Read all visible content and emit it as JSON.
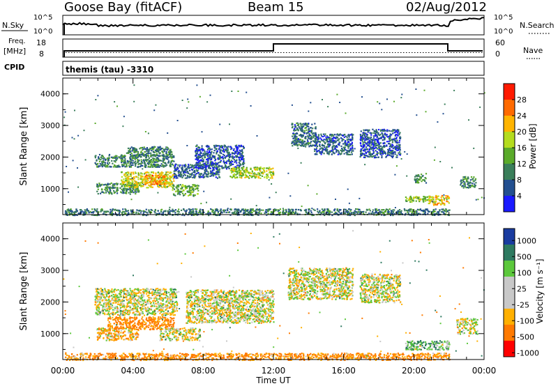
{
  "header": {
    "radar": "Goose Bay (fitACF)",
    "beam": "Beam 15",
    "date": "02/Aug/2012"
  },
  "top_panels": {
    "nsky_label": "N.Sky",
    "nsearch_label": "N.Search",
    "freq_label": "Freq.",
    "freq_unit": "[MHz]",
    "nave_label": "Nave",
    "cpid_label": "CPID",
    "cpid_value": "themis (tau) -3310",
    "noise_ticks_left": [
      "10^5",
      "10^0"
    ],
    "noise_ticks_right": [
      "10^5",
      "10^0"
    ],
    "freq_ticks": [
      "18",
      "8"
    ],
    "nave_ticks": [
      "60",
      "0"
    ]
  },
  "colors": {
    "power": [
      "#1a1aff",
      "#234f8f",
      "#3a7e5a",
      "#5aaa2a",
      "#b4dc1e",
      "#ffb400",
      "#ff6a00",
      "#ff1a00"
    ],
    "velocity": [
      "#ff0000",
      "#ff7a00",
      "#ffb000",
      "#c8c8c8",
      "#c8c8c8",
      "#5cc83c",
      "#2e7a60",
      "#1a3ca0"
    ]
  },
  "chart_data": [
    {
      "type": "heatmap",
      "panel": "power",
      "ylabel": "Slant Range [km]",
      "ylim": [
        180,
        4500
      ],
      "yticks": [
        "1000",
        "2000",
        "3000",
        "4000"
      ],
      "colorbar_label": "Power [dB]",
      "colorbar_ticks": [
        "4",
        "8",
        "12",
        "16",
        "20",
        "24",
        "28"
      ],
      "colorbar_range": [
        0,
        30
      ],
      "regions": [
        {
          "t0": 1.9,
          "t1": 4.3,
          "r0": 850,
          "r1": 1200,
          "v": 11
        },
        {
          "t0": 3.3,
          "t1": 6.3,
          "r0": 1050,
          "r1": 1550,
          "v": 19
        },
        {
          "t0": 4.6,
          "t1": 5.9,
          "r0": 1150,
          "r1": 1450,
          "v": 24
        },
        {
          "t0": 1.8,
          "t1": 6.3,
          "r0": 1700,
          "r1": 2100,
          "v": 10
        },
        {
          "t0": 3.6,
          "t1": 6.2,
          "r0": 2050,
          "r1": 2350,
          "v": 9
        },
        {
          "t0": 6.2,
          "t1": 7.7,
          "r0": 800,
          "r1": 1150,
          "v": 13
        },
        {
          "t0": 6.3,
          "t1": 8.9,
          "r0": 1350,
          "r1": 1800,
          "v": 7
        },
        {
          "t0": 7.5,
          "t1": 10.3,
          "r0": 1650,
          "r1": 2400,
          "v": 6
        },
        {
          "t0": 9.5,
          "t1": 12.0,
          "r0": 1350,
          "r1": 1700,
          "v": 17
        },
        {
          "t0": 13.0,
          "t1": 14.4,
          "r0": 2350,
          "r1": 3100,
          "v": 8
        },
        {
          "t0": 14.3,
          "t1": 16.5,
          "r0": 2100,
          "r1": 2750,
          "v": 7
        },
        {
          "t0": 16.9,
          "t1": 19.2,
          "r0": 2000,
          "r1": 2900,
          "v": 6
        },
        {
          "t0": 19.5,
          "t1": 21.0,
          "r0": 600,
          "r1": 780,
          "v": 16
        },
        {
          "t0": 20.8,
          "t1": 22.0,
          "r0": 500,
          "r1": 800,
          "v": 20
        },
        {
          "t0": 22.6,
          "t1": 23.5,
          "r0": 1050,
          "r1": 1400,
          "v": 10
        },
        {
          "t0": 20.0,
          "t1": 20.7,
          "r0": 1200,
          "r1": 1500,
          "v": 12
        },
        {
          "t0": 0.1,
          "t1": 22.0,
          "r0": 180,
          "r1": 380,
          "v": 9
        }
      ]
    },
    {
      "type": "heatmap",
      "panel": "velocity",
      "ylabel": "Slant Range [km]",
      "ylim": [
        180,
        4500
      ],
      "yticks": [
        "1000",
        "2000",
        "3000",
        "4000"
      ],
      "colorbar_label": "Velocity [m s⁻¹]",
      "colorbar_ticks": [
        "1000",
        "500",
        "100",
        "25",
        "-25",
        "-100",
        "-500",
        "-1000"
      ],
      "colorbar_range": [
        -1000,
        1000
      ],
      "regions": [
        {
          "t0": 1.9,
          "t1": 4.3,
          "r0": 800,
          "r1": 1200,
          "v": -60
        },
        {
          "t0": 2.5,
          "t1": 6.3,
          "r0": 1150,
          "r1": 1550,
          "v": -150
        },
        {
          "t0": 1.8,
          "t1": 6.5,
          "r0": 1600,
          "r1": 2450,
          "v": 0
        },
        {
          "t0": 5.5,
          "t1": 7.8,
          "r0": 800,
          "r1": 1200,
          "v": 0
        },
        {
          "t0": 7.0,
          "t1": 12.0,
          "r0": 1350,
          "r1": 2400,
          "v": 0
        },
        {
          "t0": 12.8,
          "t1": 16.5,
          "r0": 2100,
          "r1": 3100,
          "v": 0
        },
        {
          "t0": 16.9,
          "t1": 19.2,
          "r0": 2000,
          "r1": 2900,
          "v": 0
        },
        {
          "t0": 19.5,
          "t1": 22.0,
          "r0": 500,
          "r1": 800,
          "v": 80
        },
        {
          "t0": 22.4,
          "t1": 23.6,
          "r0": 1000,
          "r1": 1500,
          "v": 0
        },
        {
          "t0": 0.1,
          "t1": 22.0,
          "r0": 180,
          "r1": 400,
          "v": -120
        }
      ]
    }
  ],
  "x_axis": {
    "label": "Time UT",
    "ticks": [
      "00:00",
      "04:00",
      "08:00",
      "12:00",
      "16:00",
      "20:00",
      "00:00"
    ],
    "range": [
      0,
      24
    ]
  }
}
